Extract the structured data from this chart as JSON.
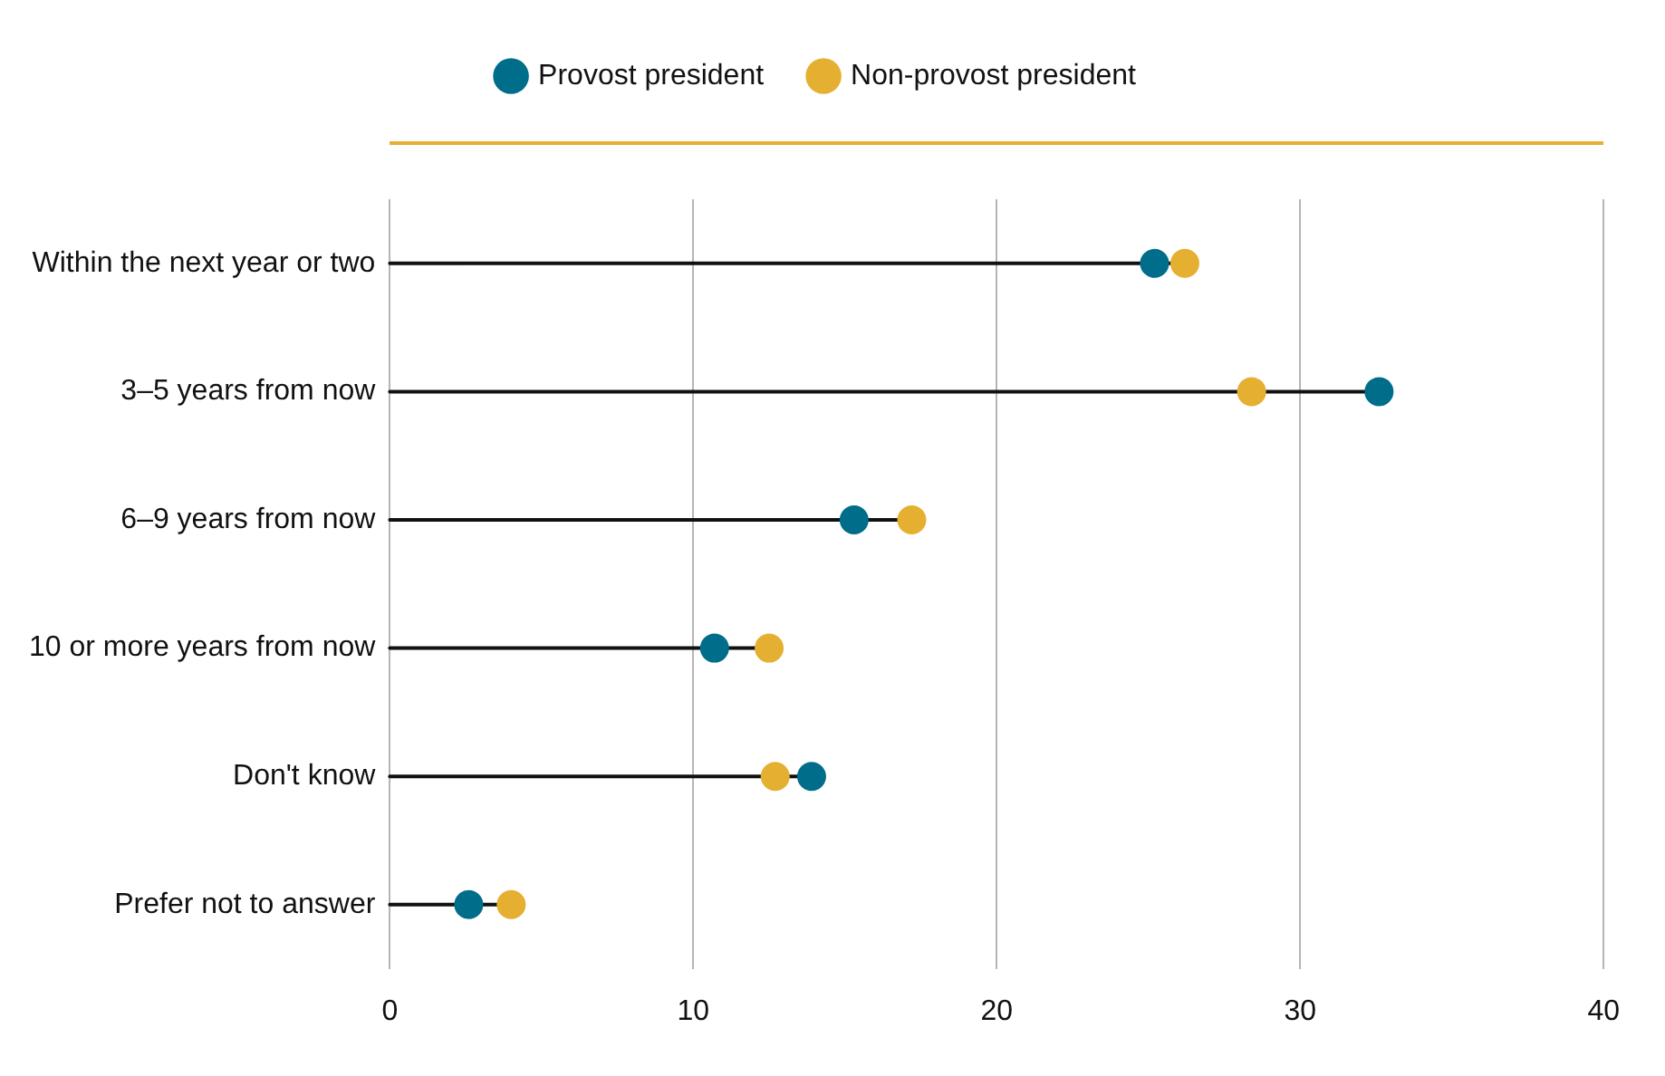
{
  "chart_data": {
    "type": "lollipop",
    "orientation": "horizontal",
    "categories": [
      "Within the next year or two",
      "3–5 years from now",
      "6–9 years from now",
      "10 or more years from now",
      "Don't know",
      "Prefer not to answer"
    ],
    "series": [
      {
        "name": "Provost president",
        "color": "#006d8a",
        "values": [
          25.2,
          32.6,
          15.3,
          10.7,
          13.9,
          2.6
        ]
      },
      {
        "name": "Non-provost president",
        "color": "#e5b031",
        "values": [
          26.2,
          28.4,
          17.2,
          12.5,
          12.7,
          4.0
        ]
      }
    ],
    "xlim": [
      0,
      40
    ],
    "xticks": [
      0,
      10,
      20,
      30,
      40
    ],
    "grid": "x",
    "legend": "top",
    "marker": "circle"
  }
}
